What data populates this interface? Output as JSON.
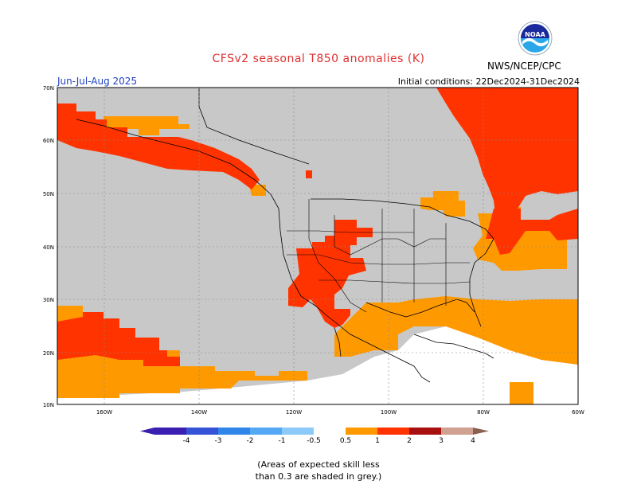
{
  "header": {
    "title": "CFSv2 seasonal T850 anomalies (K)",
    "season": "Jun-Jul-Aug 2025",
    "initial_conditions": "Initial conditions: 22Dec2024-31Dec2024",
    "agency": "NWS/NCEP/CPC",
    "logo_text": "NOAA"
  },
  "map": {
    "lat_labels": [
      "70N",
      "60N",
      "50N",
      "40N",
      "30N",
      "20N",
      "10N"
    ],
    "lon_labels": [
      "160W",
      "140W",
      "120W",
      "100W",
      "80W",
      "60W"
    ],
    "colors": {
      "skill_grey": "#c8c8c8",
      "anom_0_5_1": "#ff9900",
      "anom_1_2": "#ff3300",
      "land_lines": "#000000"
    }
  },
  "legend": {
    "labels": [
      "-4",
      "-3",
      "-2",
      "-1",
      "-0.5",
      "0.5",
      "1",
      "2",
      "3",
      "4"
    ],
    "colors": [
      "#3a1fb0",
      "#3553d6",
      "#2f86e8",
      "#55a8f5",
      "#8ccbf9",
      "#ffffff",
      "#ff9900",
      "#ff3300",
      "#a81010",
      "#d0a090"
    ]
  },
  "footnote": {
    "line1": "(Areas of expected skill less",
    "line2": "than 0.3 are shaded in grey.)"
  }
}
